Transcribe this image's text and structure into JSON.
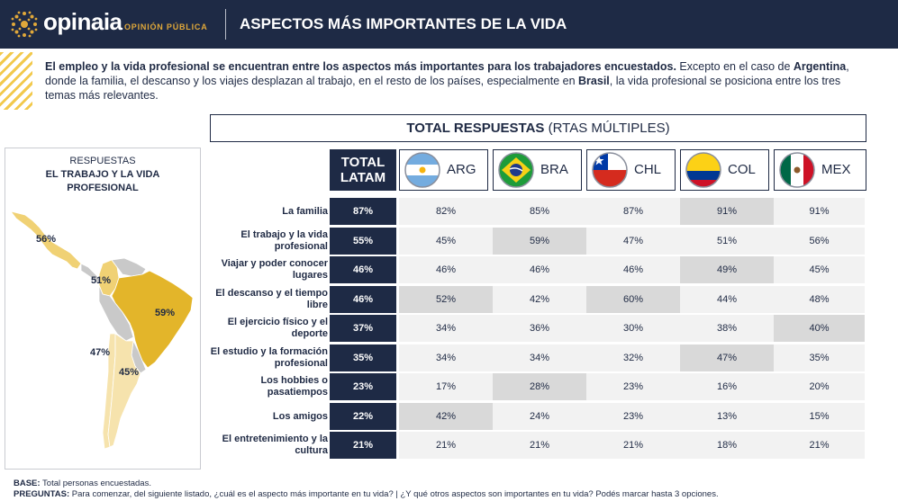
{
  "header": {
    "brand": "opinaia",
    "brand_sub": "OPINIÓN PÚBLICA",
    "title": "ASPECTOS MÁS IMPORTANTES DE LA VIDA"
  },
  "intro": {
    "p1_bold": "El empleo y la vida profesional se encuentran entre los aspectos más importantes para los trabajadores encuestados.",
    "p2": " Excepto en el caso de ",
    "p3_bold": "Argentina",
    "p4": ", donde la familia, el descanso y los viajes desplazan al trabajo, en el resto de los países, especialmente en ",
    "p5_bold": "Brasil",
    "p6": ", la vida profesional se posiciona entre los tres temas más relevantes."
  },
  "map": {
    "title_line1": "RESPUESTAS",
    "title_line2": "EL TRABAJO Y LA VIDA",
    "title_line3": "PROFESIONAL",
    "labels": {
      "mex": "56%",
      "col": "51%",
      "bra": "59%",
      "chl": "47%",
      "arg": "45%"
    },
    "colors": {
      "high": "#e3b52a",
      "mid": "#f0d174",
      "low": "#f6e3ad",
      "rest": "#c9c9c9"
    }
  },
  "table": {
    "title_bold": "TOTAL RESPUESTAS",
    "title_rest": " (RTAS MÚLTIPLES)",
    "latam_line1": "TOTAL",
    "latam_line2": "LATAM",
    "countries": [
      "ARG",
      "BRA",
      "CHL",
      "COL",
      "MEX"
    ]
  },
  "chart_data": {
    "type": "table",
    "title": "TOTAL RESPUESTAS (RTAS MÚLTIPLES)",
    "columns": [
      "TOTAL LATAM",
      "ARG",
      "BRA",
      "CHL",
      "COL",
      "MEX"
    ],
    "rows": [
      {
        "label": "La familia",
        "values": [
          "87%",
          "82%",
          "85%",
          "87%",
          "91%",
          "91%"
        ],
        "highlight": [
          false,
          false,
          false,
          false,
          true,
          false
        ]
      },
      {
        "label": "El trabajo y la vida profesional",
        "values": [
          "55%",
          "45%",
          "59%",
          "47%",
          "51%",
          "56%"
        ],
        "highlight": [
          false,
          false,
          true,
          false,
          false,
          false
        ]
      },
      {
        "label": "Viajar y poder conocer lugares",
        "values": [
          "46%",
          "46%",
          "46%",
          "46%",
          "49%",
          "45%"
        ],
        "highlight": [
          false,
          false,
          false,
          false,
          true,
          false
        ]
      },
      {
        "label": "El descanso y el tiempo libre",
        "values": [
          "46%",
          "52%",
          "42%",
          "60%",
          "44%",
          "48%"
        ],
        "highlight": [
          false,
          true,
          false,
          true,
          false,
          false
        ]
      },
      {
        "label": "El ejercicio físico y el deporte",
        "values": [
          "37%",
          "34%",
          "36%",
          "30%",
          "38%",
          "40%"
        ],
        "highlight": [
          false,
          false,
          false,
          false,
          false,
          true
        ]
      },
      {
        "label": "El estudio y la formación profesional",
        "values": [
          "35%",
          "34%",
          "34%",
          "32%",
          "47%",
          "35%"
        ],
        "highlight": [
          false,
          false,
          false,
          false,
          true,
          false
        ]
      },
      {
        "label": "Los hobbies o pasatiempos",
        "values": [
          "23%",
          "17%",
          "28%",
          "23%",
          "16%",
          "20%"
        ],
        "highlight": [
          false,
          false,
          true,
          false,
          false,
          false
        ]
      },
      {
        "label": "Los amigos",
        "values": [
          "22%",
          "42%",
          "24%",
          "23%",
          "13%",
          "15%"
        ],
        "highlight": [
          false,
          true,
          false,
          false,
          false,
          false
        ]
      },
      {
        "label": "El entretenimiento y la cultura",
        "values": [
          "21%",
          "21%",
          "21%",
          "21%",
          "18%",
          "21%"
        ],
        "highlight": [
          false,
          false,
          false,
          false,
          false,
          false
        ]
      }
    ]
  },
  "footer": {
    "base_label": "BASE:",
    "base_text": " Total personas encuestadas.",
    "q_label": "PREGUNTAS:",
    "q_text": " Para comenzar, del siguiente listado, ¿cuál es el aspecto más importante en tu vida? | ¿Y qué otros aspectos son importantes en tu vida? Podés marcar hasta 3 opciones."
  }
}
